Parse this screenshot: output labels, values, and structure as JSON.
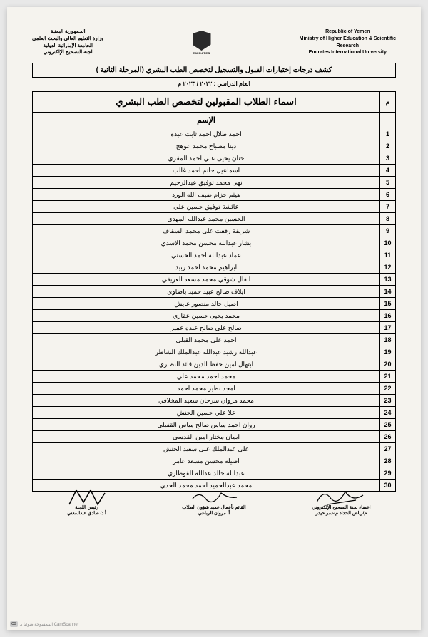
{
  "header": {
    "left_en": {
      "line1": "Republic of Yemen",
      "line2": "Ministry of Higher Education & Scientific",
      "line3": "Research",
      "line4": "Emirates International University"
    },
    "right_ar": {
      "line1": "الجمهورية اليمنية",
      "line2": "وزارة التعليم العالي والبحث العلمي",
      "line3": "الجامعة الإماراتية الدولية",
      "line4": "لجنة التصحيح الإلكتروني"
    },
    "logo_label": "EMIRATES"
  },
  "box_title": "كشف درجات إختبارات القبول والتسجيل لتخصص الطب البشري (المرحلة الثانية )",
  "academic_year": "العام الدراسي : ٢٠٢٢ / ٢٠٢٣ م",
  "table": {
    "corner_label": "م",
    "main_heading": "اسماء الطلاب المقبولين لتخصص الطب البشري",
    "name_header": "الإسم",
    "rows": [
      {
        "n": "1",
        "name": "احمد طلال احمد ثابت عبده"
      },
      {
        "n": "2",
        "name": "دينا مصباح محمد عوهج"
      },
      {
        "n": "3",
        "name": "حنان يحيى علي احمد المقري"
      },
      {
        "n": "4",
        "name": "اسماعيل حاتم احمد غالب"
      },
      {
        "n": "5",
        "name": "نهى محمد توفيق عبدالرحيم"
      },
      {
        "n": "6",
        "name": "هيثم حزام ضيف الله الورد"
      },
      {
        "n": "7",
        "name": "عائشة توفيق حسين علي"
      },
      {
        "n": "8",
        "name": "الحسين محمد عبدالله المهدي"
      },
      {
        "n": "9",
        "name": "شريفة رفعت علي محمد السقاف"
      },
      {
        "n": "10",
        "name": "بشار عبدالله محسن محمد الاسدي"
      },
      {
        "n": "11",
        "name": "عماد عبدالله احمد الحسني"
      },
      {
        "n": "12",
        "name": "ابراهيم محمد احمد ربيد"
      },
      {
        "n": "13",
        "name": "انفال شوقي محمد مسعد العريقي"
      },
      {
        "n": "14",
        "name": "ايلاف صالح عبيد حميد باضاوي"
      },
      {
        "n": "15",
        "name": "اصيل خالد منصور عايش"
      },
      {
        "n": "16",
        "name": "محمد يحيى حسين عقاري"
      },
      {
        "n": "17",
        "name": "صالح علي صالح عبده عمير"
      },
      {
        "n": "18",
        "name": "احمد علي محمد القبلي"
      },
      {
        "n": "19",
        "name": "عبدالله رشيد عبدالله عبدالملك الشاطر"
      },
      {
        "n": "20",
        "name": "ابتهال امين حفظ الدين قائد النظاري"
      },
      {
        "n": "21",
        "name": "محمد احمد محمد علي"
      },
      {
        "n": "22",
        "name": "امجد نظير محمد احمد"
      },
      {
        "n": "23",
        "name": "محمد مروان سرحان سعيد المخلافي"
      },
      {
        "n": "24",
        "name": "علا علي حسين الحنش"
      },
      {
        "n": "25",
        "name": "روان احمد مياس صالح مياس القفيلي"
      },
      {
        "n": "26",
        "name": "ايمان مختار امين القدسي"
      },
      {
        "n": "27",
        "name": "علي عبدالملك علي سعيد الحنش"
      },
      {
        "n": "28",
        "name": "اصيله محسن مسعد عامر"
      },
      {
        "n": "29",
        "name": "عبدالله خالد عدالله القوطاري"
      },
      {
        "n": "30",
        "name": "محمد عبدالحميد احمد محمد الحدي"
      }
    ]
  },
  "signatures": {
    "right": {
      "l1": "اعضاء لجنة التصحيح الإلكتروني",
      "l2": "م/رياض الحداد    م/عمر حيدر"
    },
    "center": {
      "l1": "القائم بأعمال عميد شؤون الطلاب",
      "l2": "أ. مروان الرباعي"
    },
    "left": {
      "l1": "رئيس اللجنة",
      "l2": "أ.د/ صادق عبدالمغني"
    }
  },
  "camscanner": {
    "badge": "CS",
    "text": "الممسوحة ضوئيا بـ CamScanner"
  }
}
